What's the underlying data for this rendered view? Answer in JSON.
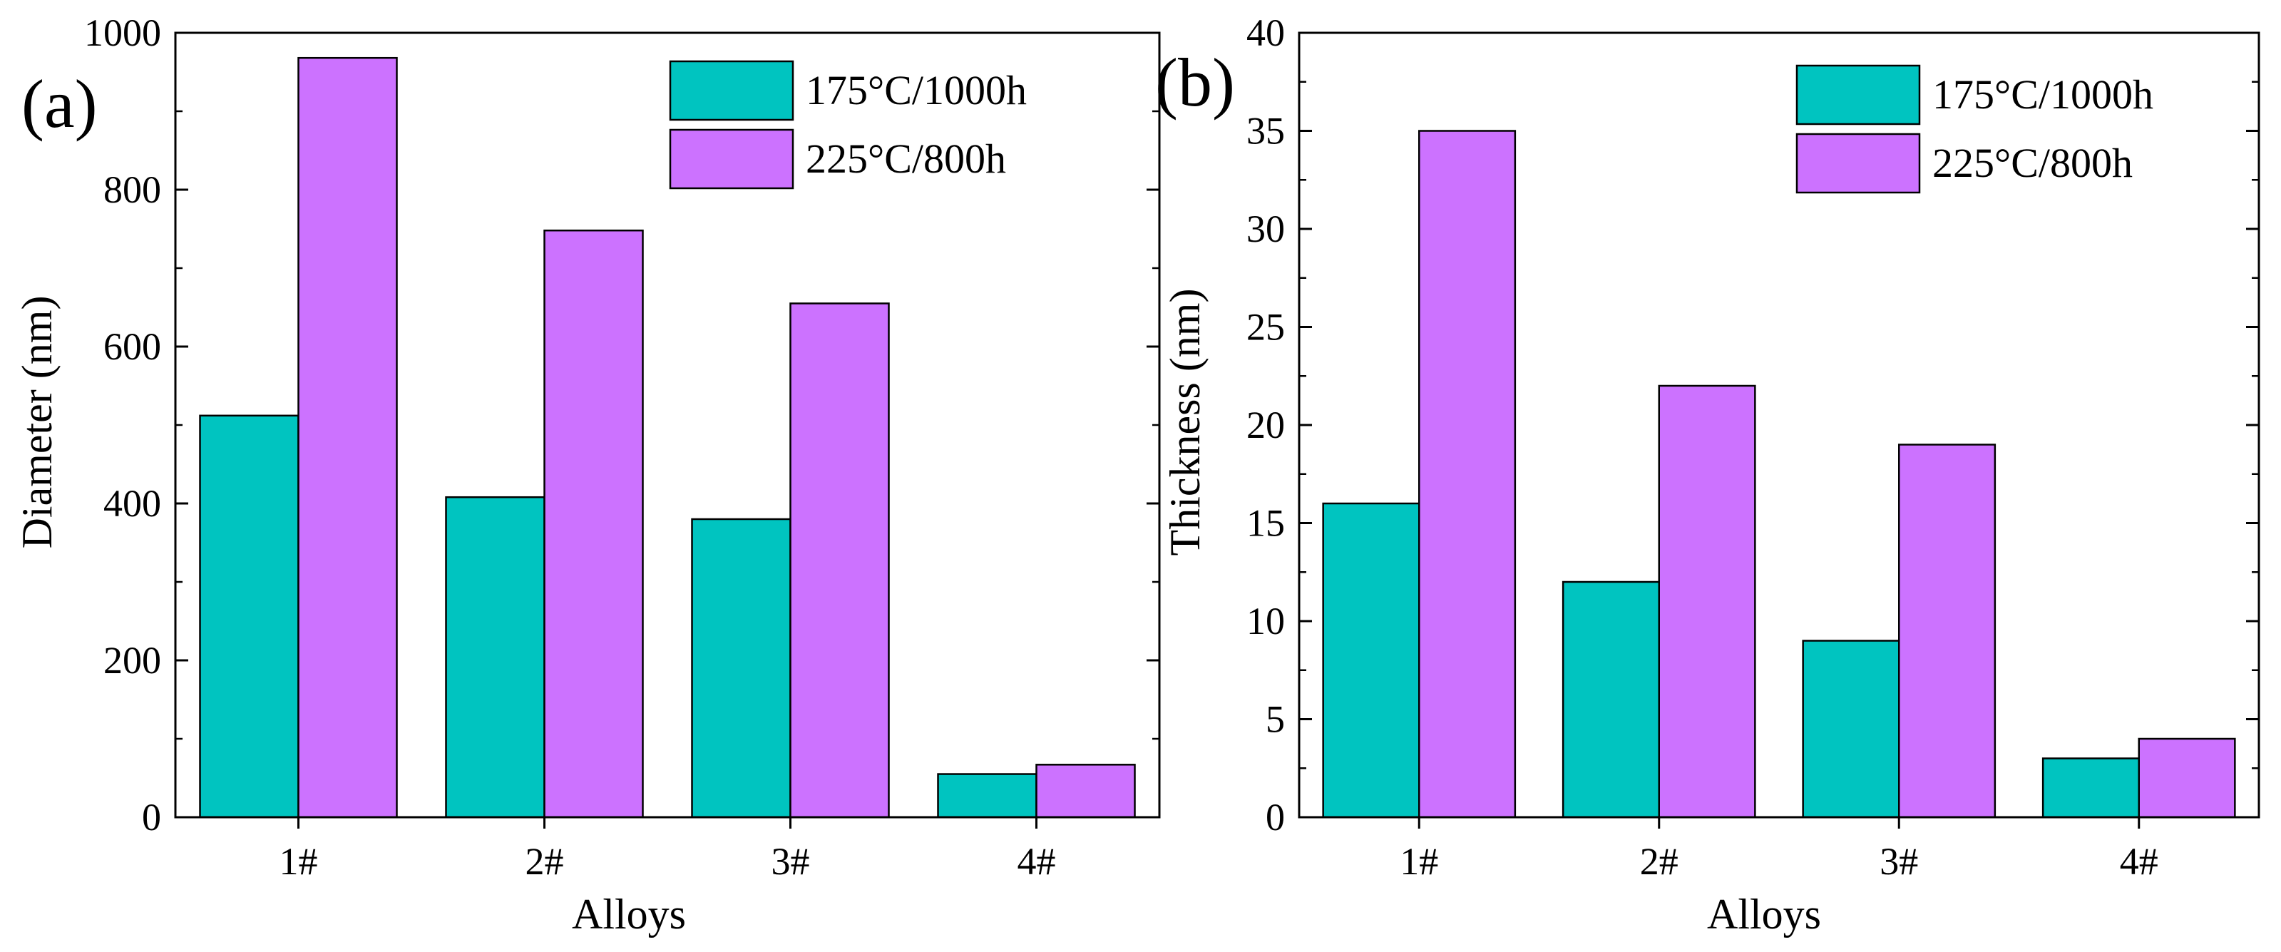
{
  "chart_data": [
    {
      "type": "bar",
      "panel_label": "(a)",
      "categories": [
        "1#",
        "2#",
        "3#",
        "4#"
      ],
      "series": [
        {
          "name": "175°C/1000h",
          "color": "#00c4c0",
          "values": [
            512,
            408,
            380,
            55
          ]
        },
        {
          "name": "225°C/800h",
          "color": "#cc72ff",
          "values": [
            968,
            748,
            655,
            67
          ]
        }
      ],
      "xlabel": "Alloys",
      "ylabel": "Diameter (nm)",
      "ylim": [
        0,
        1000
      ],
      "yticks": [
        0,
        200,
        400,
        600,
        800,
        1000
      ],
      "legend_position": "top-right",
      "grid": false
    },
    {
      "type": "bar",
      "panel_label": "(b)",
      "categories": [
        "1#",
        "2#",
        "3#",
        "4#"
      ],
      "series": [
        {
          "name": "175°C/1000h",
          "color": "#00c4c0",
          "values": [
            16,
            12,
            9,
            3
          ]
        },
        {
          "name": "225°C/800h",
          "color": "#cc72ff",
          "values": [
            35,
            22,
            19,
            4
          ]
        }
      ],
      "xlabel": "Alloys",
      "ylabel": "Thickness (nm)",
      "ylim": [
        0,
        40
      ],
      "yticks": [
        0,
        5,
        10,
        15,
        20,
        25,
        30,
        35,
        40
      ],
      "legend_position": "top-right",
      "grid": false
    }
  ]
}
